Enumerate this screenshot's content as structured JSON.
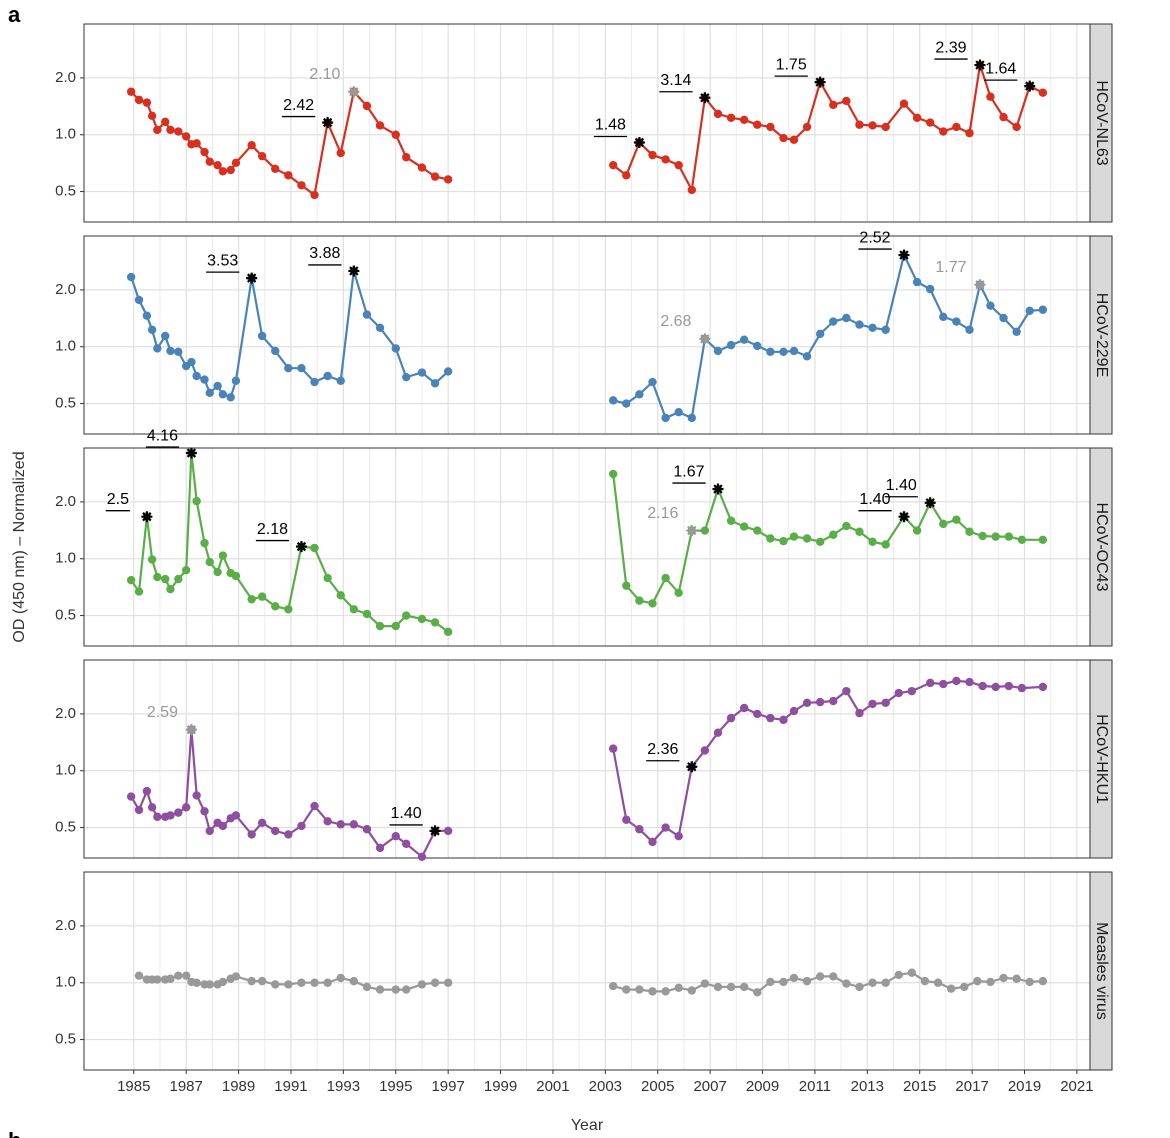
{
  "panel_label": "a",
  "next_panel_label": "b",
  "ylabel": "OD (450 nm) – Normalized",
  "chart_data": [
    {
      "type": "line",
      "strip": "HCoV-NL63",
      "color": "#d7301f",
      "log_y": true,
      "grid": true,
      "xlim": [
        1983.1,
        2021.5
      ],
      "xticks": [
        1985,
        1987,
        1989,
        1991,
        1993,
        1995,
        1997,
        1999,
        2001,
        2003,
        2005,
        2007,
        2009,
        2011,
        2013,
        2015,
        2017,
        2019,
        2021
      ],
      "ylim": [
        0.345,
        3.86
      ],
      "yticks": [
        0.5,
        {
          "value": 1,
          "label": "1.0"
        },
        {
          "value": 2,
          "label": "2.0"
        }
      ],
      "x": [
        1984.9,
        1985.2,
        1985.5,
        1985.7,
        1985.9,
        1986.2,
        1986.4,
        1986.7,
        1987.0,
        1987.2,
        1987.4,
        1987.7,
        1987.9,
        1988.2,
        1988.4,
        1988.7,
        1988.9,
        1989.5,
        1989.9,
        1990.4,
        1990.9,
        1991.4,
        1991.9,
        1992.4,
        1992.9,
        1993.4,
        1993.9,
        1994.4,
        1995.0,
        1995.4,
        1996.0,
        1996.5,
        1997.0,
        null,
        2003.3,
        2003.8,
        2004.3,
        2004.8,
        2005.3,
        2005.8,
        2006.3,
        2006.8,
        2007.3,
        2007.8,
        2008.3,
        2008.8,
        2009.3,
        2009.8,
        2010.2,
        2010.7,
        2011.2,
        2011.7,
        2012.2,
        2012.7,
        2013.2,
        2013.7,
        2014.4,
        2014.9,
        2015.4,
        2015.9,
        2016.4,
        2016.9,
        2017.3,
        2017.7,
        2018.2,
        2018.7,
        2019.2,
        2019.7
      ],
      "values": [
        1.69,
        1.53,
        1.48,
        1.26,
        1.06,
        1.17,
        1.06,
        1.04,
        0.98,
        0.89,
        0.9,
        0.81,
        0.72,
        0.69,
        0.64,
        0.65,
        0.71,
        0.88,
        0.77,
        0.66,
        0.61,
        0.54,
        0.48,
        1.16,
        0.8,
        1.69,
        1.42,
        1.12,
        1.0,
        0.76,
        0.67,
        0.6,
        0.58,
        null,
        0.69,
        0.61,
        0.91,
        0.78,
        0.74,
        0.69,
        0.51,
        1.57,
        1.29,
        1.23,
        1.2,
        1.13,
        1.1,
        0.96,
        0.94,
        1.1,
        1.9,
        1.44,
        1.51,
        1.13,
        1.12,
        1.1,
        1.46,
        1.23,
        1.16,
        1.04,
        1.1,
        1.02,
        2.34,
        1.59,
        1.24,
        1.1,
        1.81,
        1.67
      ],
      "annotations": [
        {
          "x": 1992.4,
          "y": 1.16,
          "text": "2.42",
          "color": "#000000"
        },
        {
          "x": 1993.4,
          "y": 1.69,
          "text": "2.10",
          "color": "#999999"
        },
        {
          "x": 2004.3,
          "y": 0.91,
          "text": "1.48",
          "color": "#000000"
        },
        {
          "x": 2006.8,
          "y": 1.57,
          "text": "3.14",
          "color": "#000000"
        },
        {
          "x": 2011.2,
          "y": 1.9,
          "text": "1.75",
          "color": "#000000"
        },
        {
          "x": 2017.3,
          "y": 2.34,
          "text": "2.39",
          "color": "#000000"
        },
        {
          "x": 2019.2,
          "y": 1.81,
          "text": "1.64",
          "color": "#000000"
        }
      ]
    },
    {
      "type": "line",
      "strip": "HCoV-229E",
      "color": "#4a83b8",
      "log_y": true,
      "grid": true,
      "xlim": [
        1983.1,
        2021.5
      ],
      "xticks": [
        1985,
        1987,
        1989,
        1991,
        1993,
        1995,
        1997,
        1999,
        2001,
        2003,
        2005,
        2007,
        2009,
        2011,
        2013,
        2015,
        2017,
        2019,
        2021
      ],
      "ylim": [
        0.345,
        3.86
      ],
      "yticks": [
        0.5,
        {
          "value": 1,
          "label": "1.0"
        },
        {
          "value": 2,
          "label": "2.0"
        }
      ],
      "x": [
        1984.9,
        1985.2,
        1985.5,
        1985.7,
        1985.9,
        1986.2,
        1986.4,
        1986.7,
        1987.0,
        1987.2,
        1987.4,
        1987.7,
        1987.9,
        1988.2,
        1988.4,
        1988.7,
        1988.9,
        1989.5,
        1989.9,
        1990.4,
        1990.9,
        1991.4,
        1991.9,
        1992.4,
        1992.9,
        1993.4,
        1993.9,
        1994.4,
        1995.0,
        1995.4,
        1996.0,
        1996.5,
        1997.0,
        null,
        2003.3,
        2003.8,
        2004.3,
        2004.8,
        2005.3,
        2005.8,
        2006.3,
        2006.8,
        2007.3,
        2007.8,
        2008.3,
        2008.8,
        2009.3,
        2009.8,
        2010.2,
        2010.7,
        2011.2,
        2011.7,
        2012.2,
        2012.7,
        2013.2,
        2013.7,
        2014.4,
        2014.9,
        2015.4,
        2015.9,
        2016.4,
        2016.9,
        2017.3,
        2017.7,
        2018.2,
        2018.7,
        2019.2,
        2019.7
      ],
      "values": [
        2.34,
        1.77,
        1.46,
        1.23,
        0.98,
        1.14,
        0.95,
        0.94,
        0.79,
        0.83,
        0.7,
        0.67,
        0.57,
        0.62,
        0.56,
        0.54,
        0.66,
        2.31,
        1.14,
        0.95,
        0.77,
        0.77,
        0.65,
        0.7,
        0.66,
        2.52,
        1.48,
        1.26,
        0.98,
        0.69,
        0.73,
        0.64,
        0.74,
        null,
        0.52,
        0.5,
        0.56,
        0.65,
        0.42,
        0.45,
        0.42,
        1.1,
        0.95,
        1.02,
        1.09,
        1.01,
        0.94,
        0.94,
        0.95,
        0.89,
        1.17,
        1.36,
        1.42,
        1.31,
        1.26,
        1.23,
        3.06,
        2.2,
        2.02,
        1.44,
        1.36,
        1.23,
        2.13,
        1.65,
        1.42,
        1.2,
        1.55,
        1.57
      ],
      "annotations": [
        {
          "x": 1989.5,
          "y": 2.31,
          "text": "3.53",
          "color": "#000000"
        },
        {
          "x": 1993.4,
          "y": 2.52,
          "text": "3.88",
          "color": "#000000"
        },
        {
          "x": 2006.8,
          "y": 1.1,
          "text": "2.68",
          "color": "#999999"
        },
        {
          "x": 2014.4,
          "y": 3.06,
          "text": "2.52",
          "color": "#000000"
        },
        {
          "x": 2017.3,
          "y": 2.13,
          "text": "1.77",
          "color": "#999999"
        }
      ]
    },
    {
      "type": "line",
      "strip": "HCoV-OC43",
      "color": "#5aae48",
      "log_y": true,
      "grid": true,
      "xlim": [
        1983.1,
        2021.5
      ],
      "xticks": [
        1985,
        1987,
        1989,
        1991,
        1993,
        1995,
        1997,
        1999,
        2001,
        2003,
        2005,
        2007,
        2009,
        2011,
        2013,
        2015,
        2017,
        2019,
        2021
      ],
      "ylim": [
        0.345,
        3.86
      ],
      "yticks": [
        0.5,
        {
          "value": 1,
          "label": "1.0"
        },
        {
          "value": 2,
          "label": "2.0"
        }
      ],
      "x": [
        1984.9,
        1985.2,
        1985.5,
        1985.7,
        1985.9,
        1986.2,
        1986.4,
        1986.7,
        1987.0,
        1987.2,
        1987.4,
        1987.7,
        1987.9,
        1988.2,
        1988.4,
        1988.7,
        1988.9,
        1989.5,
        1989.9,
        1990.4,
        1990.9,
        1991.4,
        1991.9,
        1992.4,
        1992.9,
        1993.4,
        1993.9,
        1994.4,
        1995.0,
        1995.4,
        1996.0,
        1996.5,
        1997.0,
        null,
        2003.3,
        2003.8,
        2004.3,
        2004.8,
        2005.3,
        2005.8,
        2006.3,
        2006.8,
        2007.3,
        2007.8,
        2008.3,
        2008.8,
        2009.3,
        2009.8,
        2010.2,
        2010.7,
        2011.2,
        2011.7,
        2012.2,
        2012.7,
        2013.2,
        2013.7,
        2014.4,
        2014.9,
        2015.4,
        2015.9,
        2016.4,
        2016.9,
        2017.4,
        2017.9,
        2018.4,
        2018.9,
        2019.7
      ],
      "values": [
        0.77,
        0.67,
        1.67,
        0.99,
        0.8,
        0.78,
        0.69,
        0.78,
        0.87,
        3.63,
        2.02,
        1.21,
        0.96,
        0.85,
        1.04,
        0.84,
        0.81,
        0.61,
        0.63,
        0.56,
        0.54,
        1.16,
        1.14,
        0.79,
        0.64,
        0.54,
        0.51,
        0.44,
        0.44,
        0.5,
        0.48,
        0.46,
        0.41,
        null,
        2.81,
        0.72,
        0.6,
        0.58,
        0.79,
        0.66,
        1.41,
        1.41,
        2.34,
        1.59,
        1.48,
        1.41,
        1.28,
        1.24,
        1.31,
        1.28,
        1.23,
        1.34,
        1.49,
        1.39,
        1.23,
        1.19,
        1.67,
        1.41,
        1.98,
        1.53,
        1.61,
        1.39,
        1.32,
        1.31,
        1.31,
        1.26,
        1.26
      ],
      "annotations": [
        {
          "x": 1985.5,
          "y": 1.67,
          "text": "2.5",
          "color": "#000000"
        },
        {
          "x": 1987.2,
          "y": 3.63,
          "text": "4.16",
          "color": "#000000"
        },
        {
          "x": 1991.4,
          "y": 1.16,
          "text": "2.18",
          "color": "#000000"
        },
        {
          "x": 2006.3,
          "y": 1.41,
          "text": "2.16",
          "color": "#999999"
        },
        {
          "x": 2007.3,
          "y": 2.34,
          "text": "1.67",
          "color": "#000000"
        },
        {
          "x": 2014.4,
          "y": 1.67,
          "text": "1.40",
          "color": "#000000"
        },
        {
          "x": 2015.4,
          "y": 1.98,
          "text": "1.40",
          "color": "#000000"
        }
      ]
    },
    {
      "type": "line",
      "strip": "HCoV-HKU1",
      "color": "#8e4f9e",
      "log_y": true,
      "grid": true,
      "xlim": [
        1983.1,
        2021.5
      ],
      "xticks": [
        1985,
        1987,
        1989,
        1991,
        1993,
        1995,
        1997,
        1999,
        2001,
        2003,
        2005,
        2007,
        2009,
        2011,
        2013,
        2015,
        2017,
        2019,
        2021
      ],
      "ylim": [
        0.345,
        3.86
      ],
      "yticks": [
        0.5,
        {
          "value": 1,
          "label": "1.0"
        },
        {
          "value": 2,
          "label": "2.0"
        }
      ],
      "x": [
        1984.9,
        1985.2,
        1985.5,
        1985.7,
        1985.9,
        1986.2,
        1986.4,
        1986.7,
        1987.0,
        1987.2,
        1987.4,
        1987.7,
        1987.9,
        1988.2,
        1988.4,
        1988.7,
        1988.9,
        1989.5,
        1989.9,
        1990.4,
        1990.9,
        1991.4,
        1991.9,
        1992.4,
        1992.9,
        1993.4,
        1993.9,
        1994.4,
        1995.0,
        1995.4,
        1996.0,
        1996.5,
        1997.0,
        null,
        2003.3,
        2003.8,
        2004.3,
        2004.8,
        2005.3,
        2005.8,
        2006.3,
        2006.8,
        2007.3,
        2007.8,
        2008.3,
        2008.8,
        2009.3,
        2009.8,
        2010.2,
        2010.7,
        2011.2,
        2011.7,
        2012.2,
        2012.7,
        2013.2,
        2013.7,
        2014.2,
        2014.7,
        2015.4,
        2015.9,
        2016.4,
        2016.9,
        2017.4,
        2017.9,
        2018.4,
        2018.9,
        2019.7
      ],
      "values": [
        0.73,
        0.62,
        0.78,
        0.64,
        0.57,
        0.57,
        0.58,
        0.6,
        0.64,
        1.65,
        0.74,
        0.61,
        0.48,
        0.53,
        0.51,
        0.56,
        0.58,
        0.46,
        0.53,
        0.48,
        0.46,
        0.51,
        0.65,
        0.54,
        0.52,
        0.52,
        0.49,
        0.39,
        0.45,
        0.41,
        0.35,
        0.48,
        0.48,
        null,
        1.31,
        0.55,
        0.49,
        0.42,
        0.5,
        0.45,
        1.05,
        1.28,
        1.59,
        1.9,
        2.15,
        2.0,
        1.9,
        1.86,
        2.07,
        2.29,
        2.31,
        2.34,
        2.64,
        2.02,
        2.26,
        2.29,
        2.58,
        2.64,
        2.92,
        2.88,
        2.99,
        2.95,
        2.81,
        2.78,
        2.81,
        2.74,
        2.78
      ],
      "annotations": [
        {
          "x": 1987.2,
          "y": 1.65,
          "text": "2.59",
          "color": "#999999"
        },
        {
          "x": 1996.5,
          "y": 0.48,
          "text": "1.40",
          "color": "#000000"
        },
        {
          "x": 2006.3,
          "y": 1.05,
          "text": "2.36",
          "color": "#000000"
        }
      ]
    },
    {
      "type": "line",
      "strip": "Measles virus",
      "color": "#999999",
      "log_y": true,
      "grid": true,
      "xlabel": "Year",
      "xlim": [
        1983.1,
        2021.5
      ],
      "xticks": [
        1985,
        1987,
        1989,
        1991,
        1993,
        1995,
        1997,
        1999,
        2001,
        2003,
        2005,
        2007,
        2009,
        2011,
        2013,
        2015,
        2017,
        2019,
        2021
      ],
      "ylim": [
        0.345,
        3.86
      ],
      "yticks": [
        0.5,
        {
          "value": 1,
          "label": "1.0"
        },
        {
          "value": 2,
          "label": "2.0"
        }
      ],
      "x": [
        1985.2,
        1985.5,
        1985.7,
        1985.9,
        1986.2,
        1986.4,
        1986.7,
        1987.0,
        1987.2,
        1987.4,
        1987.7,
        1987.9,
        1988.2,
        1988.4,
        1988.7,
        1988.9,
        1989.5,
        1989.9,
        1990.4,
        1990.9,
        1991.4,
        1991.9,
        1992.4,
        1992.9,
        1993.4,
        1993.9,
        1994.4,
        1995.0,
        1995.4,
        1996.0,
        1996.5,
        1997.0,
        null,
        2003.3,
        2003.8,
        2004.3,
        2004.8,
        2005.3,
        2005.8,
        2006.3,
        2006.8,
        2007.3,
        2007.8,
        2008.3,
        2008.8,
        2009.3,
        2009.8,
        2010.2,
        2010.7,
        2011.2,
        2011.7,
        2012.2,
        2012.7,
        2013.2,
        2013.7,
        2014.2,
        2014.7,
        2015.2,
        2015.7,
        2016.2,
        2016.7,
        2017.2,
        2017.7,
        2018.2,
        2018.7,
        2019.2,
        2019.7
      ],
      "values": [
        1.09,
        1.04,
        1.04,
        1.04,
        1.04,
        1.05,
        1.09,
        1.09,
        1.01,
        1.0,
        0.98,
        0.98,
        0.98,
        1.01,
        1.05,
        1.08,
        1.02,
        1.02,
        0.98,
        0.98,
        1.0,
        1.0,
        1.0,
        1.06,
        1.02,
        0.95,
        0.92,
        0.92,
        0.92,
        0.98,
        1.0,
        1.0,
        null,
        0.96,
        0.92,
        0.92,
        0.9,
        0.9,
        0.94,
        0.91,
        0.99,
        0.95,
        0.95,
        0.95,
        0.89,
        1.01,
        1.01,
        1.06,
        1.02,
        1.08,
        1.08,
        0.99,
        0.95,
        1.0,
        1.0,
        1.1,
        1.13,
        1.02,
        1.0,
        0.93,
        0.95,
        1.02,
        1.01,
        1.06,
        1.05,
        1.01,
        1.02
      ],
      "annotations": []
    }
  ]
}
